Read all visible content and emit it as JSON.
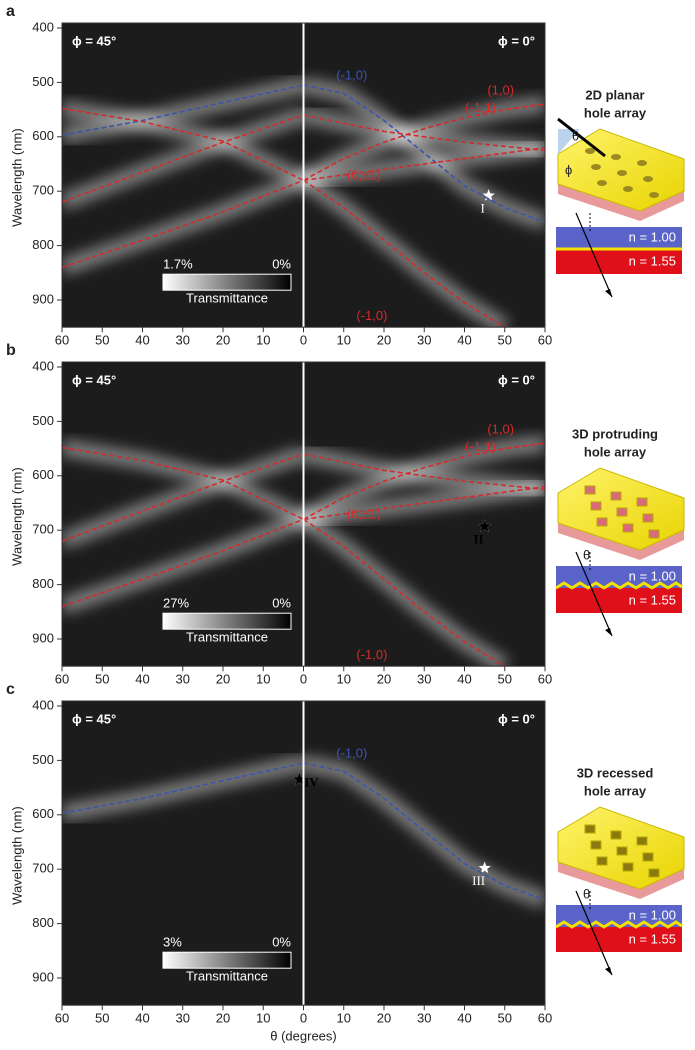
{
  "chart_data": [
    {
      "type": "line",
      "panel": "a",
      "ylabel": "Wavelength (nm)",
      "ylim": [
        400,
        950
      ],
      "yticks": [
        400,
        500,
        600,
        700,
        800,
        900
      ],
      "left": {
        "annotation": "ϕ = 45°",
        "xlim": [
          60,
          0
        ],
        "xticks": [
          60,
          50,
          40,
          30,
          20,
          10
        ],
        "series": [
          {
            "color": "#3a55b0",
            "x": [
              60,
              40,
              20,
              0
            ],
            "y": [
              597,
              570,
              537,
              505
            ]
          },
          {
            "color": "#d42a2a",
            "x": [
              60,
              40,
              20,
              0
            ],
            "y": [
              548,
              572,
              608,
              680
            ]
          },
          {
            "color": "#d42a2a",
            "x": [
              60,
              40,
              20,
              0
            ],
            "y": [
              720,
              665,
              610,
              560
            ]
          },
          {
            "color": "#d42a2a",
            "x": [
              60,
              40,
              20,
              0
            ],
            "y": [
              840,
              790,
              738,
              680
            ]
          }
        ]
      },
      "right": {
        "annotation": "ϕ = 0°",
        "xlim": [
          0,
          60
        ],
        "xticks": [
          0,
          10,
          20,
          30,
          40,
          50,
          60
        ],
        "series": [
          {
            "name": "(-1,0)",
            "color": "#3a55b0",
            "x": [
              0,
              10,
              20,
              30,
              40,
              50,
              60
            ],
            "y": [
              505,
              520,
              570,
              630,
              690,
              730,
              757
            ]
          },
          {
            "name": "(1,0)",
            "color": "#d42a2a",
            "x": [
              0,
              10,
              20,
              30,
              40,
              50,
              60
            ],
            "y": [
              680,
              640,
              610,
              585,
              565,
              550,
              540
            ]
          },
          {
            "name": "(-1,1)",
            "color": "#d42a2a",
            "x": [
              0,
              20,
              40,
              60
            ],
            "y": [
              560,
              590,
              610,
              625
            ]
          },
          {
            "name": "(0,±1)",
            "color": "#d42a2a",
            "x": [
              0,
              20,
              40,
              60
            ],
            "y": [
              680,
              660,
              640,
              620
            ]
          },
          {
            "name": "(-1,0)",
            "color": "#d42a2a",
            "x": [
              0,
              10,
              20,
              30,
              40,
              50
            ],
            "y": [
              680,
              730,
              790,
              850,
              905,
              950
            ]
          }
        ],
        "markers": [
          {
            "label": "I",
            "x": 46,
            "y": 708,
            "color": "#ffffff"
          }
        ]
      },
      "colorbar": {
        "max_label": "1.7%",
        "min_label": "0%",
        "label": "Transmittance"
      },
      "schematic": {
        "title": [
          "2D planar",
          "hole array"
        ],
        "theta": "θ",
        "phi": "ϕ",
        "n_top": "n = 1.00",
        "n_bottom": "n = 1.55"
      }
    },
    {
      "type": "line",
      "panel": "b",
      "ylabel": "Wavelength (nm)",
      "ylim": [
        400,
        950
      ],
      "yticks": [
        400,
        500,
        600,
        700,
        800,
        900
      ],
      "left": {
        "annotation": "ϕ = 45°",
        "xlim": [
          60,
          0
        ],
        "xticks": [
          60,
          50,
          40,
          30,
          20,
          10
        ],
        "series": [
          {
            "color": "#d42a2a",
            "x": [
              60,
              40,
              20,
              0
            ],
            "y": [
              548,
              572,
              608,
              680
            ]
          },
          {
            "color": "#d42a2a",
            "x": [
              60,
              40,
              20,
              0
            ],
            "y": [
              720,
              665,
              610,
              560
            ]
          },
          {
            "color": "#d42a2a",
            "x": [
              60,
              40,
              20,
              0
            ],
            "y": [
              840,
              790,
              738,
              680
            ]
          }
        ]
      },
      "right": {
        "annotation": "ϕ = 0°",
        "xlim": [
          0,
          60
        ],
        "xticks": [
          0,
          10,
          20,
          30,
          40,
          50,
          60
        ],
        "series": [
          {
            "name": "(1,0)",
            "color": "#d42a2a",
            "x": [
              0,
              10,
              20,
              30,
              40,
              50,
              60
            ],
            "y": [
              680,
              640,
              610,
              585,
              565,
              550,
              540
            ]
          },
          {
            "name": "(-1,1)",
            "color": "#d42a2a",
            "x": [
              0,
              20,
              40,
              60
            ],
            "y": [
              560,
              590,
              610,
              625
            ]
          },
          {
            "name": "(0,±1)",
            "color": "#d42a2a",
            "x": [
              0,
              20,
              40,
              60
            ],
            "y": [
              680,
              660,
              640,
              620
            ]
          },
          {
            "name": "(-1,0)",
            "color": "#d42a2a",
            "x": [
              0,
              10,
              20,
              30,
              40,
              50
            ],
            "y": [
              680,
              730,
              790,
              850,
              905,
              950
            ]
          }
        ],
        "markers": [
          {
            "label": "II",
            "x": 45,
            "y": 693,
            "color": "#000000"
          }
        ]
      },
      "colorbar": {
        "max_label": "27%",
        "min_label": "0%",
        "label": "Transmittance"
      },
      "schematic": {
        "title": [
          "3D protruding",
          "hole array"
        ],
        "theta": "θ",
        "n_top": "n = 1.00",
        "n_bottom": "n = 1.55"
      }
    },
    {
      "type": "line",
      "panel": "c",
      "ylabel": "Wavelength (nm)",
      "xlabel": "θ (degrees)",
      "ylim": [
        400,
        950
      ],
      "yticks": [
        400,
        500,
        600,
        700,
        800,
        900
      ],
      "left": {
        "annotation": "ϕ = 45°",
        "xlim": [
          60,
          0
        ],
        "xticks": [
          60,
          50,
          40,
          30,
          20,
          10
        ],
        "series": [
          {
            "color": "#3a55b0",
            "x": [
              60,
              40,
              20,
              0
            ],
            "y": [
              597,
              570,
              537,
              505
            ]
          }
        ],
        "markers": [
          {
            "label": "IV",
            "x": 1,
            "y": 535,
            "color": "#000000"
          }
        ]
      },
      "right": {
        "annotation": "ϕ = 0°",
        "xlim": [
          0,
          60
        ],
        "xticks": [
          0,
          10,
          20,
          30,
          40,
          50,
          60
        ],
        "series": [
          {
            "name": "(-1,0)",
            "color": "#3a55b0",
            "x": [
              0,
              10,
              20,
              30,
              40,
              50,
              60
            ],
            "y": [
              505,
              520,
              570,
              630,
              690,
              730,
              757
            ]
          }
        ],
        "markers": [
          {
            "label": "III",
            "x": 45,
            "y": 698,
            "color": "#ffffff"
          }
        ]
      },
      "colorbar": {
        "max_label": "3%",
        "min_label": "0%",
        "label": "Transmittance"
      },
      "schematic": {
        "title": [
          "3D recessed",
          "hole array"
        ],
        "theta": "θ",
        "n_top": "n = 1.00",
        "n_bottom": "n = 1.55"
      }
    }
  ]
}
